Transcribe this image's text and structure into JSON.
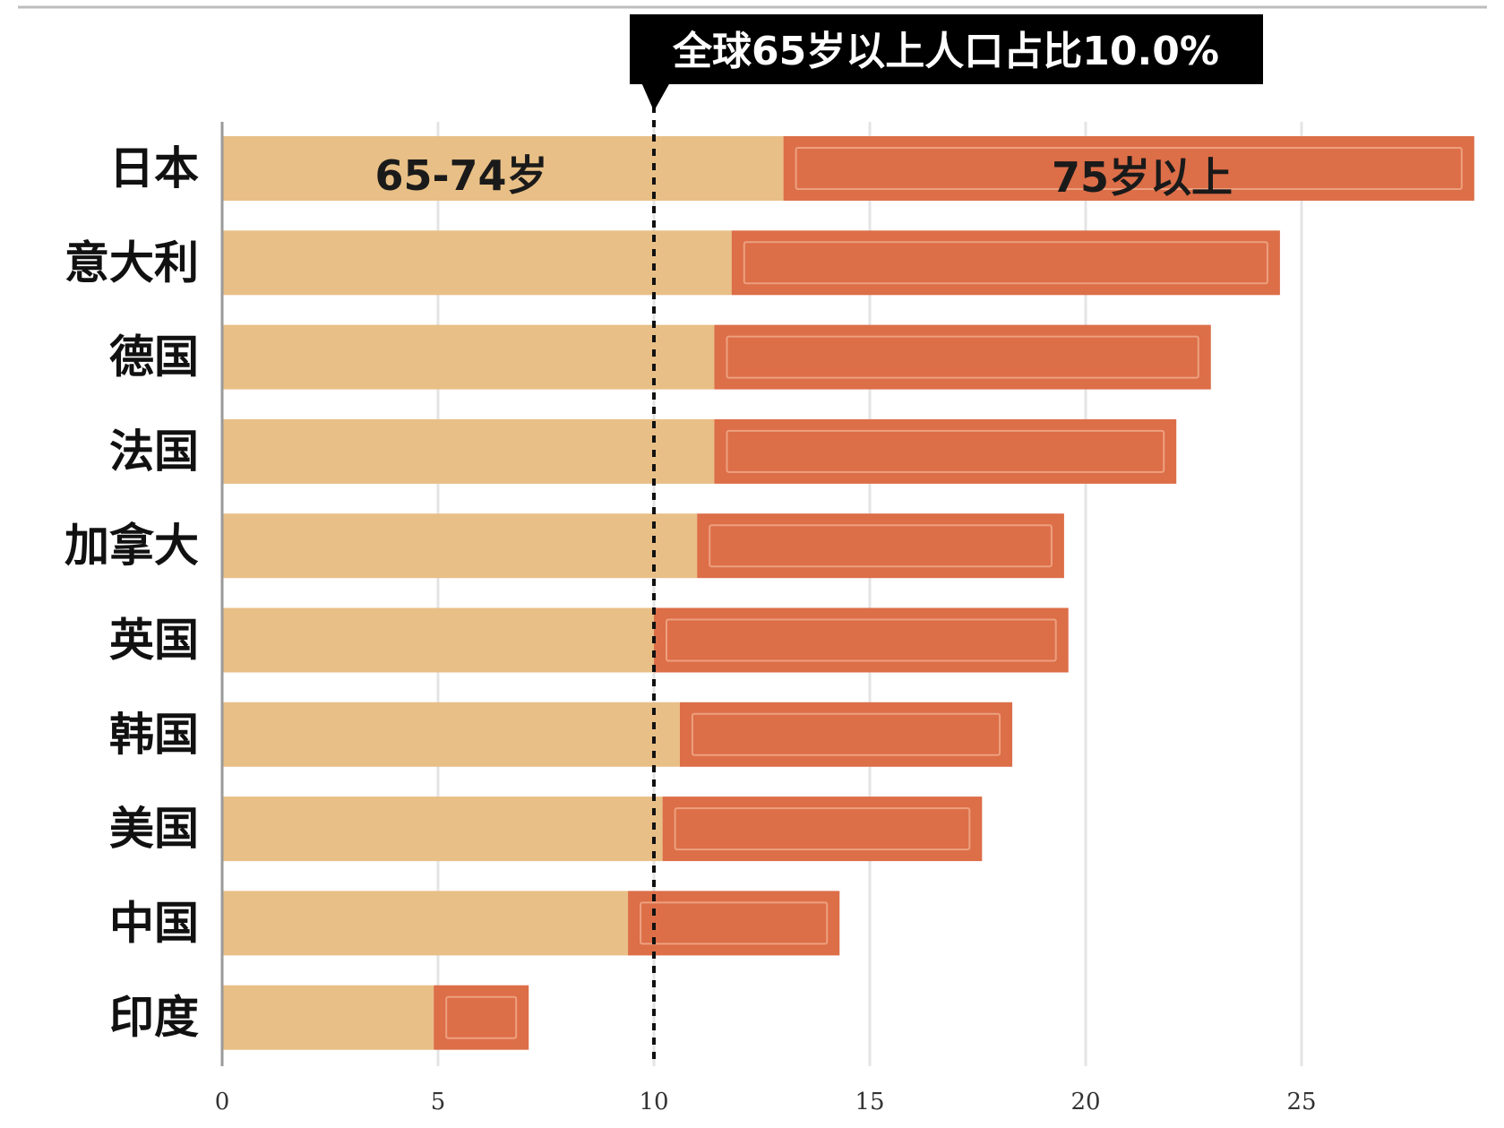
{
  "chart_data": {
    "type": "bar",
    "orientation": "horizontal",
    "stacked": true,
    "categories": [
      "日本",
      "意大利",
      "德国",
      "法国",
      "加拿大",
      "英国",
      "韩国",
      "美国",
      "中国",
      "印度"
    ],
    "series": [
      {
        "name": "65-74岁",
        "values": [
          13.0,
          11.8,
          11.4,
          11.4,
          11.0,
          10.0,
          10.6,
          10.2,
          9.4,
          4.9
        ]
      },
      {
        "name": "75岁以上",
        "values": [
          16.0,
          12.7,
          11.5,
          10.7,
          8.5,
          9.6,
          7.7,
          7.4,
          4.9,
          2.2
        ]
      }
    ],
    "xlim": [
      0,
      30
    ],
    "xticks": [
      "0",
      "5",
      "10",
      "15",
      "20",
      "25"
    ],
    "xtick_values": [
      0,
      5,
      10,
      15,
      20,
      25
    ],
    "reference_line": {
      "value": 10.0,
      "label": "全球65岁以上人口占比10.0%"
    },
    "colors": {
      "series1": "#e8bf86",
      "series2": "#dc6e48",
      "callout_bg": "#000000"
    },
    "grid": true,
    "legend": "inline"
  }
}
